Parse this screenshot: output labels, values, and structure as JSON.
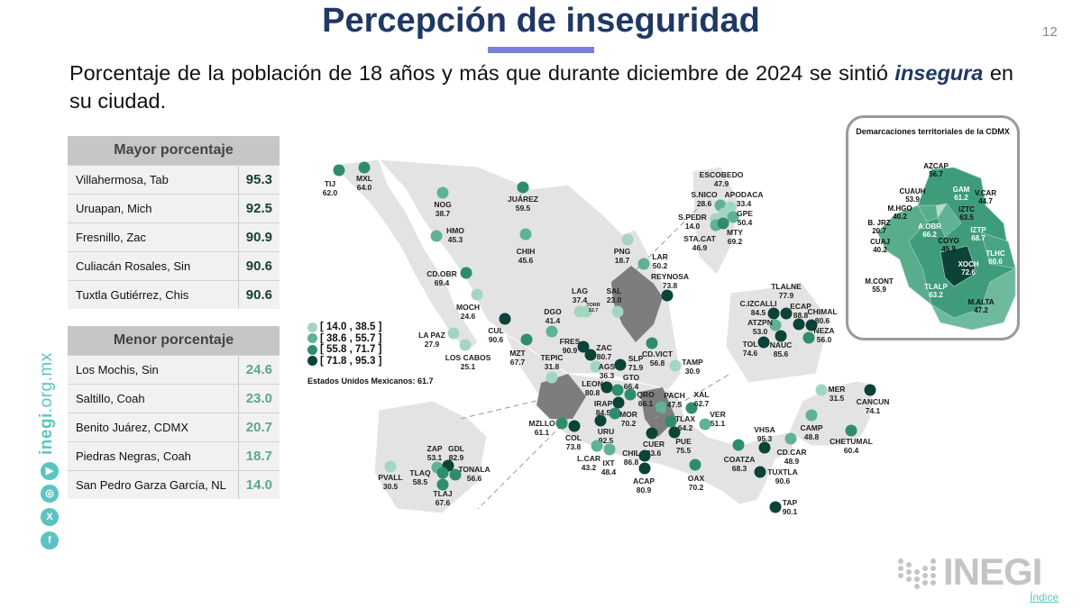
{
  "header": {
    "title": "Percepción de inseguridad",
    "page_number": "12",
    "subtitle_pre": "Porcentaje de la población de 18 años y más que durante diciembre de 2024 se sintió ",
    "subtitle_em": "insegura",
    "subtitle_post": " en su ciudad."
  },
  "top_table": {
    "header": "Mayor porcentaje",
    "rows": [
      {
        "city": "Villahermosa, Tab",
        "value": "95.3"
      },
      {
        "city": "Uruapan, Mich",
        "value": "92.5"
      },
      {
        "city": "Fresnillo, Zac",
        "value": "90.9"
      },
      {
        "city": "Culiacán Rosales, Sin",
        "value": "90.6"
      },
      {
        "city": "Tuxtla Gutiérrez, Chis",
        "value": "90.6"
      }
    ]
  },
  "bottom_table": {
    "header": "Menor porcentaje",
    "rows": [
      {
        "city": "Los Mochis, Sin",
        "value": "24.6"
      },
      {
        "city": "Saltillo, Coah",
        "value": "23.0"
      },
      {
        "city": "Benito Juárez, CDMX",
        "value": "20.7"
      },
      {
        "city": "Piedras Negras, Coah",
        "value": "18.7"
      },
      {
        "city": "San Pedro Garza García, NL",
        "value": "14.0"
      }
    ]
  },
  "sidebar": {
    "url_bold": "inegi",
    "url_rest": ".org.mx",
    "icons": [
      "youtube-icon",
      "instagram-icon",
      "x-icon",
      "facebook-icon"
    ]
  },
  "colors": {
    "level1": "#a3d6c1",
    "level2": "#5fb294",
    "level3": "#2f8d6d",
    "level4": "#0c4237",
    "accent": "#7b7fd6",
    "title": "#1f3864"
  },
  "legend": [
    {
      "label": "[ 14.0 , 38.5 ]",
      "level": 1
    },
    {
      "label": "[ 38.6 , 55.7 ]",
      "level": 2
    },
    {
      "label": "[ 55.8 , 71.7 ]",
      "level": 3
    },
    {
      "label": "[ 71.8 , 95.3 ]",
      "level": 4
    }
  ],
  "national": {
    "label": "Estados Unidos Mexicanos:",
    "value": "61.7"
  },
  "cities": [
    {
      "name": "TIJ",
      "value": "62.0",
      "level": 3
    },
    {
      "name": "MXL",
      "value": "64.0",
      "level": 3
    },
    {
      "name": "NOG",
      "value": "38.7",
      "level": 2
    },
    {
      "name": "JUÁREZ",
      "value": "59.5",
      "level": 3
    },
    {
      "name": "HMO",
      "value": "45.3",
      "level": 2
    },
    {
      "name": "CHIH",
      "value": "45.6",
      "level": 2
    },
    {
      "name": "CD.OBR",
      "value": "69.4",
      "level": 3
    },
    {
      "name": "MOCH",
      "value": "24.6",
      "level": 1
    },
    {
      "name": "CUL",
      "value": "90.6",
      "level": 4
    },
    {
      "name": "LA PAZ",
      "value": "27.9",
      "level": 1
    },
    {
      "name": "LOS CABOS",
      "value": "25.1",
      "level": 1
    },
    {
      "name": "MZT",
      "value": "67.7",
      "level": 3
    },
    {
      "name": "DGO",
      "value": "41.4",
      "level": 2
    },
    {
      "name": "LAG",
      "value": "37.4",
      "level": 1
    },
    {
      "name": "TORR",
      "value": "32.7",
      "level": 1
    },
    {
      "name": "SAL",
      "value": "23.0",
      "level": 1
    },
    {
      "name": "PNG",
      "value": "18.7",
      "level": 1
    },
    {
      "name": "LAR",
      "value": "50.2",
      "level": 2
    },
    {
      "name": "REYNOSA",
      "value": "73.8",
      "level": 4
    },
    {
      "name": "TEPIC",
      "value": "31.8",
      "level": 1
    },
    {
      "name": "FRES",
      "value": "90.9",
      "level": 4
    },
    {
      "name": "ZAC",
      "value": "80.7",
      "level": 4
    },
    {
      "name": "AGS",
      "value": "36.3",
      "level": 1
    },
    {
      "name": "SLP",
      "value": "71.9",
      "level": 4
    },
    {
      "name": "CD.VICT",
      "value": "56.8",
      "level": 3
    },
    {
      "name": "TAMP",
      "value": "30.9",
      "level": 1
    },
    {
      "name": "LEON",
      "value": "80.8",
      "level": 4
    },
    {
      "name": "GTO",
      "value": "66.4",
      "level": 3
    },
    {
      "name": "QRO",
      "value": "66.1",
      "level": 3
    },
    {
      "name": "IRAP",
      "value": "84.5",
      "level": 4
    },
    {
      "name": "MOR",
      "value": "70.2",
      "level": 3
    },
    {
      "name": "MZLLO",
      "value": "61.1",
      "level": 3
    },
    {
      "name": "COL",
      "value": "73.8",
      "level": 4
    },
    {
      "name": "URU",
      "value": "92.5",
      "level": 4
    },
    {
      "name": "PACH",
      "value": "47.5",
      "level": 2
    },
    {
      "name": "XAL",
      "value": "62.7",
      "level": 3
    },
    {
      "name": "VER",
      "value": "51.1",
      "level": 2
    },
    {
      "name": "TLAX",
      "value": "64.2",
      "level": 3
    },
    {
      "name": "CUER",
      "value": "83.6",
      "level": 4
    },
    {
      "name": "PUE",
      "value": "75.5",
      "level": 4
    },
    {
      "name": "L.CAR",
      "value": "43.2",
      "level": 2
    },
    {
      "name": "IXT",
      "value": "48.4",
      "level": 2
    },
    {
      "name": "CHIL",
      "value": "86.8",
      "level": 4
    },
    {
      "name": "ACAP",
      "value": "80.9",
      "level": 4
    },
    {
      "name": "OAX",
      "value": "70.2",
      "level": 3
    },
    {
      "name": "COATZA",
      "value": "68.3",
      "level": 3
    },
    {
      "name": "VHSA",
      "value": "95.3",
      "level": 4
    },
    {
      "name": "CD.CAR",
      "value": "48.9",
      "level": 2
    },
    {
      "name": "TUXTLA",
      "value": "90.6",
      "level": 4
    },
    {
      "name": "TAP",
      "value": "90.1",
      "level": 4
    },
    {
      "name": "CAMP",
      "value": "48.8",
      "level": 2
    },
    {
      "name": "MER",
      "value": "31.5",
      "level": 1
    },
    {
      "name": "CANCUN",
      "value": "74.1",
      "level": 4
    },
    {
      "name": "CHETUMAL",
      "value": "60.4",
      "level": 3
    },
    {
      "name": "ZAP",
      "value": "53.1",
      "level": 2
    },
    {
      "name": "GDL",
      "value": "82.9",
      "level": 4
    },
    {
      "name": "TLAQ",
      "value": "58.5",
      "level": 3
    },
    {
      "name": "TONALA",
      "value": "56.6",
      "level": 3
    },
    {
      "name": "TLAJ",
      "value": "67.6",
      "level": 3
    },
    {
      "name": "PVALL",
      "value": "30.5",
      "level": 1
    },
    {
      "name": "ESCOBEDO",
      "value": "47.9",
      "level": 2
    },
    {
      "name": "S.NICO",
      "value": "28.6",
      "level": 1
    },
    {
      "name": "APODACA",
      "value": "33.4",
      "level": 1
    },
    {
      "name": "S.PEDR",
      "value": "14.0",
      "level": 1
    },
    {
      "name": "GPE",
      "value": "50.4",
      "level": 2
    },
    {
      "name": "STA.CAT",
      "value": "46.9",
      "level": 2
    },
    {
      "name": "MTY",
      "value": "69.2",
      "level": 3
    },
    {
      "name": "TLALNE",
      "value": "77.9",
      "level": 4
    },
    {
      "name": "C.IZCALLI",
      "value": "84.5",
      "level": 4
    },
    {
      "name": "ATZPN",
      "value": "53.0",
      "level": 2
    },
    {
      "name": "ECAP",
      "value": "88.8",
      "level": 4
    },
    {
      "name": "CHIMAL",
      "value": "80.6",
      "level": 4
    },
    {
      "name": "NEZA",
      "value": "56.0",
      "level": 3
    },
    {
      "name": "TOL",
      "value": "74.6",
      "level": 4
    },
    {
      "name": "NAUC",
      "value": "85.6",
      "level": 4
    }
  ],
  "cdmx": {
    "title": "Demarcaciones territoriales de la CDMX",
    "areas": [
      {
        "name": "AZCAP",
        "value": "56.7"
      },
      {
        "name": "GAM",
        "value": "61.2"
      },
      {
        "name": "CUAUH",
        "value": "53.9"
      },
      {
        "name": "V.CAR",
        "value": "44.7"
      },
      {
        "name": "M.HGO",
        "value": "40.2"
      },
      {
        "name": "IZTC",
        "value": "63.5"
      },
      {
        "name": "B. JRZ",
        "value": "20.7"
      },
      {
        "name": "A.OBR",
        "value": "66.2"
      },
      {
        "name": "IZTP",
        "value": "68.7"
      },
      {
        "name": "CUAJ",
        "value": "40.2"
      },
      {
        "name": "COYO",
        "value": "45.9"
      },
      {
        "name": "TLHC",
        "value": "60.6"
      },
      {
        "name": "XOCH",
        "value": "72.6"
      },
      {
        "name": "M.CONT",
        "value": "55.9"
      },
      {
        "name": "TLALP",
        "value": "63.2"
      },
      {
        "name": "M.ALTA",
        "value": "47.2"
      }
    ]
  },
  "footer": {
    "logo": "INEGI",
    "index_link": "Índice"
  }
}
